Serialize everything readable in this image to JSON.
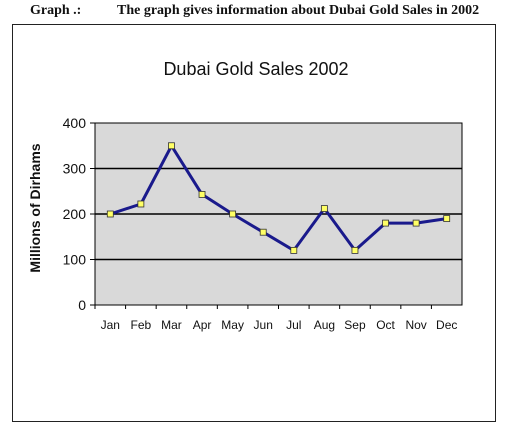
{
  "caption": {
    "label": "Graph  .:",
    "text": "The graph gives information about Dubai Gold Sales in 2002"
  },
  "colors": {
    "plot_background": "#d9d9d9",
    "line": "#1a1a8c",
    "marker": "#ffff66",
    "grid": "#000000"
  },
  "chart_data": {
    "type": "line",
    "title": "Dubai Gold Sales 2002",
    "xlabel": "",
    "ylabel": "Millions of Dirhams",
    "categories": [
      "Jan",
      "Feb",
      "Mar",
      "Apr",
      "May",
      "Jun",
      "Jul",
      "Aug",
      "Sep",
      "Oct",
      "Nov",
      "Dec"
    ],
    "series": [
      {
        "values": [
          200,
          222,
          350,
          243,
          200,
          160,
          120,
          212,
          120,
          180,
          180,
          190
        ]
      }
    ],
    "ylim": [
      0,
      400
    ],
    "yticks": [
      "0",
      "100",
      "200",
      "300",
      "400"
    ],
    "grid": true,
    "legend": "none"
  }
}
